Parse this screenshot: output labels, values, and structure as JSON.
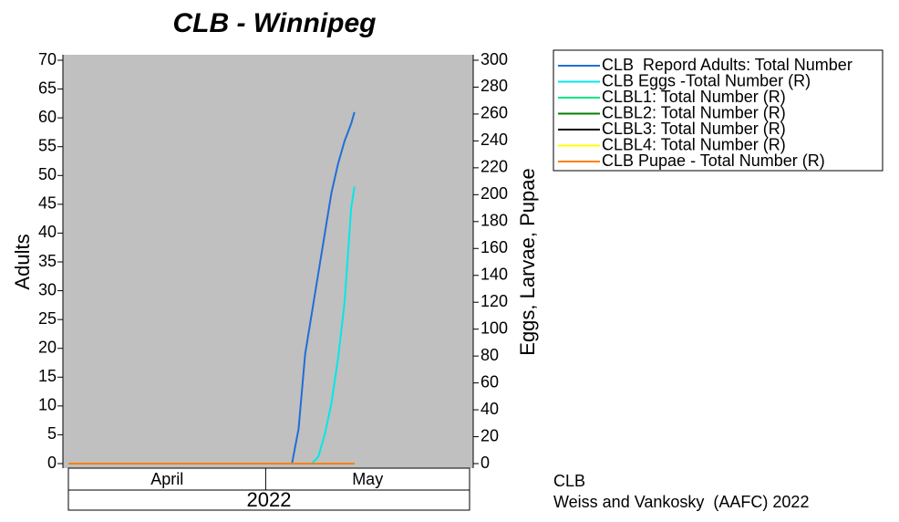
{
  "chart_data": {
    "type": "line",
    "title": "CLB - Winnipeg",
    "y_label": "Adults",
    "y2_label": "Eggs, Larvae, Pupae",
    "month_labels": [
      "April",
      "May"
    ],
    "month_edges": [
      91,
      121,
      152
    ],
    "year_label": "2022",
    "xlim": [
      91,
      152
    ],
    "x": [
      91,
      125,
      126,
      127,
      128,
      129,
      130,
      131,
      132,
      133,
      134,
      134.5
    ],
    "ylim": [
      0,
      70
    ],
    "yticks": [
      0,
      5,
      10,
      15,
      20,
      25,
      30,
      35,
      40,
      45,
      50,
      55,
      60,
      65,
      70
    ],
    "y2lim": [
      0,
      300
    ],
    "y2ticks": [
      0,
      20,
      40,
      60,
      80,
      100,
      120,
      140,
      160,
      180,
      200,
      220,
      240,
      260,
      280,
      300
    ],
    "series": [
      {
        "name": "CLB  Repord Adults: Total Number",
        "color": "#1f6fd6",
        "axis": "y",
        "values": [
          0,
          0,
          6,
          19,
          26,
          33,
          40,
          47,
          52,
          56,
          59,
          61
        ]
      },
      {
        "name": "CLB Eggs -Total Number (R)",
        "color": "#00e8e8",
        "axis": "y2",
        "values": [
          0,
          0,
          0,
          0,
          0,
          5,
          22,
          45,
          78,
          120,
          190,
          206
        ]
      },
      {
        "name": "CLBL1: Total Number (R)",
        "color": "#00e680",
        "axis": "y2",
        "values": [
          0,
          0,
          0,
          0,
          0,
          0,
          0,
          0,
          0,
          0,
          0,
          0
        ]
      },
      {
        "name": "CLBL2: Total Number (R)",
        "color": "#008000",
        "axis": "y2",
        "values": [
          0,
          0,
          0,
          0,
          0,
          0,
          0,
          0,
          0,
          0,
          0,
          0
        ]
      },
      {
        "name": "CLBL3: Total Number (R)",
        "color": "#000000",
        "axis": "y2",
        "values": [
          0,
          0,
          0,
          0,
          0,
          0,
          0,
          0,
          0,
          0,
          0,
          0
        ]
      },
      {
        "name": "CLBL4: Total Number (R)",
        "color": "#ffff00",
        "axis": "y2",
        "values": [
          0,
          0,
          0,
          0,
          0,
          0,
          0,
          0,
          0,
          0,
          0,
          0
        ]
      },
      {
        "name": "CLB Pupae - Total Number (R)",
        "color": "#ff8000",
        "axis": "y2",
        "values": [
          0,
          0,
          0,
          0,
          0,
          0,
          0,
          0,
          0,
          0,
          0,
          0
        ]
      }
    ],
    "plot_background": "#c0c0c0",
    "footer": [
      "CLB",
      "Weiss and Vankosky  (AAFC) 2022"
    ]
  }
}
